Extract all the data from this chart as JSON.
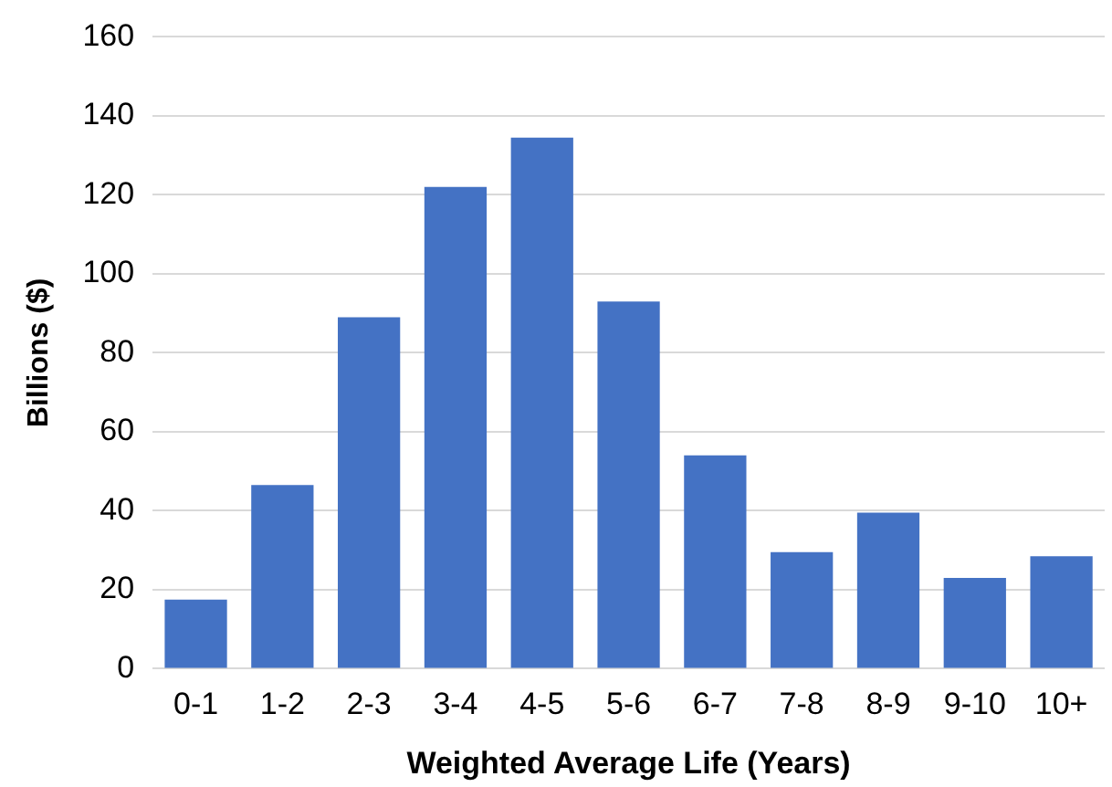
{
  "chart_data": {
    "type": "bar",
    "xlabel": "Weighted Average Life (Years)",
    "ylabel": "Billions ($)",
    "categories": [
      "0-1",
      "1-2",
      "2-3",
      "3-4",
      "4-5",
      "5-6",
      "6-7",
      "7-8",
      "8-9",
      "9-10",
      "10+"
    ],
    "values": [
      17.5,
      46.5,
      89,
      122,
      134.5,
      93,
      54,
      29.5,
      39.5,
      23,
      28.5
    ],
    "color": "#4472c4",
    "ylim": [
      0,
      160
    ],
    "yticks": [
      0,
      20,
      40,
      60,
      80,
      100,
      120,
      140,
      160
    ],
    "grid": "y"
  }
}
